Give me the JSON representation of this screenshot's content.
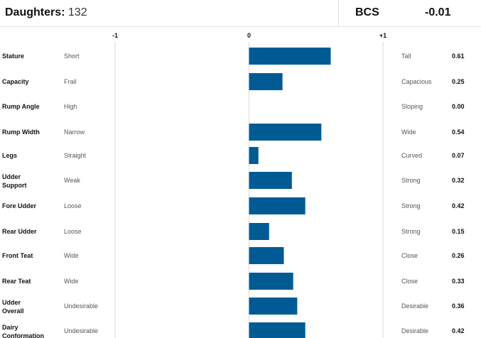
{
  "header": {
    "daughters_label": "Daughters:",
    "daughters_value": "132",
    "bcs_label": "BCS",
    "bcs_value": "-0.01"
  },
  "colors": {
    "bar": "#005b94",
    "grid": "#d9d9d9",
    "divider": "#e3e3e3"
  },
  "chart_data": {
    "type": "bar",
    "orientation": "horizontal",
    "xlim": [
      -1,
      1
    ],
    "ticks": [
      {
        "value": -1,
        "label": "-1"
      },
      {
        "value": 0,
        "label": "0"
      },
      {
        "value": 1,
        "label": "+1"
      }
    ],
    "traits": [
      {
        "name": "Stature",
        "low": "Short",
        "high": "Tall",
        "value": 0.61,
        "label": "0.61"
      },
      {
        "name": "Capacity",
        "low": "Frail",
        "high": "Capacious",
        "value": 0.25,
        "label": "0.25"
      },
      {
        "name": "Rump Angle",
        "low": "High",
        "high": "Sloping",
        "value": 0.0,
        "label": "0.00"
      },
      {
        "name": "Rump Width",
        "low": "Narrow",
        "high": "Wide",
        "value": 0.54,
        "label": "0.54"
      },
      {
        "name": "Legs",
        "low": "Straight",
        "high": "Curved",
        "value": 0.07,
        "label": "0.07"
      },
      {
        "name": "Udder Support",
        "low": "Weak",
        "high": "Strong",
        "value": 0.32,
        "label": "0.32"
      },
      {
        "name": "Fore Udder",
        "low": "Loose",
        "high": "Strong",
        "value": 0.42,
        "label": "0.42"
      },
      {
        "name": "Rear Udder",
        "low": "Loose",
        "high": "Strong",
        "value": 0.15,
        "label": "0.15"
      },
      {
        "name": "Front Teat",
        "low": "Wide",
        "high": "Close",
        "value": 0.26,
        "label": "0.26"
      },
      {
        "name": "Rear Teat",
        "low": "Wide",
        "high": "Close",
        "value": 0.33,
        "label": "0.33"
      },
      {
        "name": "Udder Overall",
        "low": "Undesirable",
        "high": "Desirable",
        "value": 0.36,
        "label": "0.36"
      },
      {
        "name": "Dairy Conformation",
        "low": "Undesirable",
        "high": "Desirable",
        "value": 0.42,
        "label": "0.42"
      }
    ]
  }
}
